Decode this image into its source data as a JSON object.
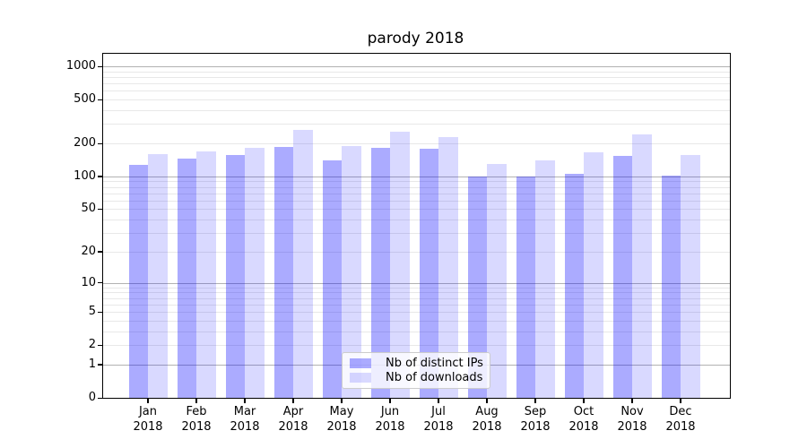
{
  "figure": {
    "title": "parody 2018"
  },
  "chart_data": {
    "type": "bar",
    "title": "parody 2018",
    "categories": [
      "Jan",
      "Feb",
      "Mar",
      "Apr",
      "May",
      "Jun",
      "Jul",
      "Aug",
      "Sep",
      "Oct",
      "Nov",
      "Dec"
    ],
    "x_sublabel_year": "2018",
    "series": [
      {
        "name": "Nb of distinct IPs",
        "color": "rgba(0,0,255,0.33)",
        "values": [
          128,
          145,
          157,
          186,
          140,
          182,
          180,
          100,
          100,
          105,
          155,
          102
        ]
      },
      {
        "name": "Nb of downloads",
        "color": "rgba(0,0,255,0.15)",
        "values": [
          160,
          168,
          182,
          266,
          190,
          256,
          230,
          131,
          140,
          165,
          240,
          158
        ]
      }
    ],
    "yscale": "log1p",
    "ylim": [
      0,
      1300
    ],
    "y_ticks": [
      {
        "label": "0",
        "value": 0
      },
      {
        "label": "1",
        "value": 1
      },
      {
        "label": "2",
        "value": 2
      },
      {
        "label": "5",
        "value": 5
      },
      {
        "label": "10",
        "value": 10
      },
      {
        "label": "20",
        "value": 20
      },
      {
        "label": "50",
        "value": 50
      },
      {
        "label": "100",
        "value": 100
      },
      {
        "label": "200",
        "value": 200
      },
      {
        "label": "500",
        "value": 500
      },
      {
        "label": "1000",
        "value": 1000
      }
    ],
    "grid": {
      "major_values": [
        1,
        10,
        100,
        1000
      ],
      "minor_values": [
        2,
        3,
        4,
        5,
        6,
        7,
        8,
        9,
        20,
        30,
        40,
        50,
        60,
        70,
        80,
        90,
        200,
        300,
        400,
        500,
        600,
        700,
        800,
        900
      ],
      "major_color": "#b2b2b2",
      "minor_color": "#e8e8e8"
    },
    "legend_position": "lower center",
    "xlabel": "",
    "ylabel": ""
  }
}
